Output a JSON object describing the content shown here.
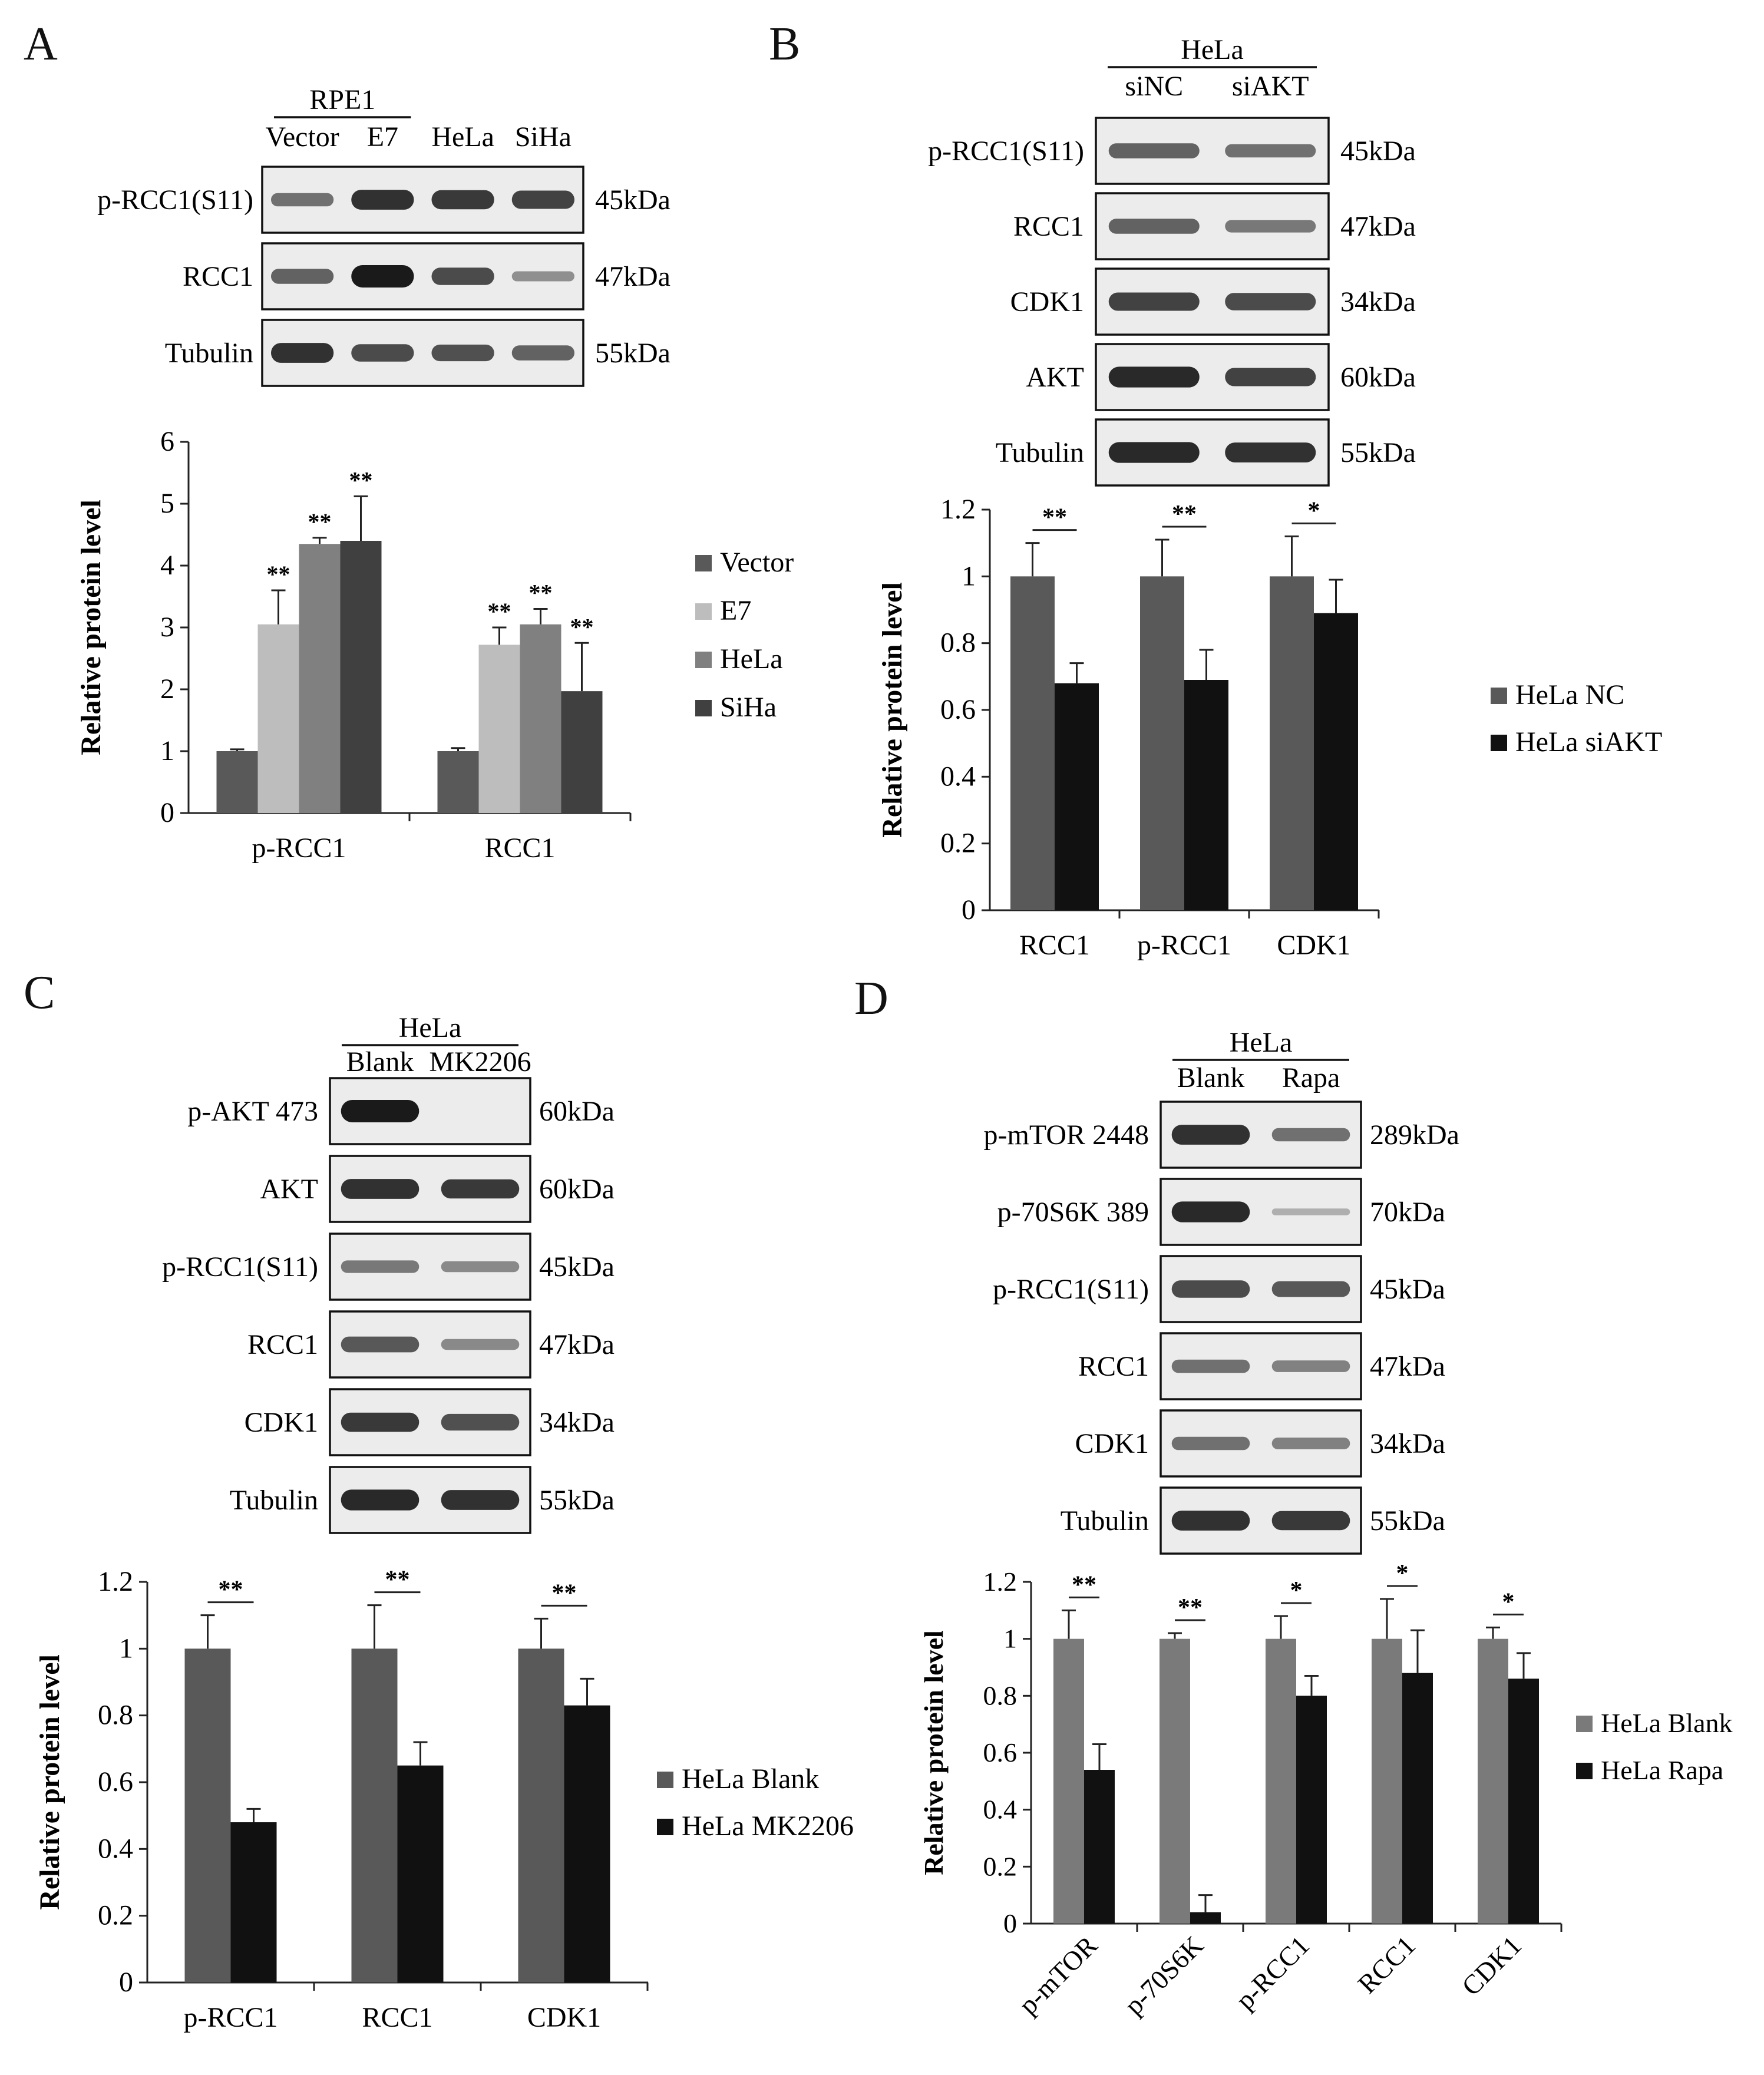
{
  "panels": {
    "A": {
      "letter": "A",
      "group_label": "RPE1",
      "lanes": [
        "Vector",
        "E7",
        "HeLa",
        "SiHa"
      ],
      "blots": [
        {
          "label": "p-RCC1(S11)",
          "size": "45kDa",
          "intensity": [
            0.45,
            0.85,
            0.8,
            0.75
          ]
        },
        {
          "label": "RCC1",
          "size": "47kDa",
          "intensity": [
            0.55,
            1.0,
            0.7,
            0.25
          ]
        },
        {
          "label": "Tubulin",
          "size": "55kDa",
          "intensity": [
            0.85,
            0.7,
            0.65,
            0.55
          ]
        }
      ]
    },
    "B": {
      "letter": "B",
      "group_label": "HeLa",
      "lanes": [
        "siNC",
        "siAKT"
      ],
      "blots": [
        {
          "label": "p-RCC1(S11)",
          "size": "45kDa",
          "intensity": [
            0.55,
            0.45
          ]
        },
        {
          "label": "RCC1",
          "size": "47kDa",
          "intensity": [
            0.55,
            0.4
          ]
        },
        {
          "label": "CDK1",
          "size": "34kDa",
          "intensity": [
            0.75,
            0.7
          ]
        },
        {
          "label": "AKT",
          "size": "60kDa",
          "intensity": [
            0.9,
            0.75
          ]
        },
        {
          "label": "Tubulin",
          "size": "55kDa",
          "intensity": [
            0.9,
            0.85
          ]
        }
      ]
    },
    "C": {
      "letter": "C",
      "group_label": "HeLa",
      "lanes": [
        "Blank",
        "MK2206"
      ],
      "blots": [
        {
          "label": "p-AKT 473",
          "size": "60kDa",
          "intensity": [
            1.0,
            0.0
          ]
        },
        {
          "label": "AKT",
          "size": "60kDa",
          "intensity": [
            0.85,
            0.8
          ]
        },
        {
          "label": "p-RCC1(S11)",
          "size": "45kDa",
          "intensity": [
            0.4,
            0.3
          ]
        },
        {
          "label": "RCC1",
          "size": "47kDa",
          "intensity": [
            0.6,
            0.3
          ]
        },
        {
          "label": "CDK1",
          "size": "34kDa",
          "intensity": [
            0.8,
            0.65
          ]
        },
        {
          "label": "Tubulin",
          "size": "55kDa",
          "intensity": [
            0.9,
            0.85
          ]
        }
      ]
    },
    "D": {
      "letter": "D",
      "group_label": "HeLa",
      "lanes": [
        "Blank",
        "Rapa"
      ],
      "blots": [
        {
          "label": "p-mTOR 2448",
          "size": "289kDa",
          "intensity": [
            0.85,
            0.45
          ]
        },
        {
          "label": "p-70S6K 389",
          "size": "70kDa",
          "intensity": [
            0.9,
            0.05
          ]
        },
        {
          "label": "p-RCC1(S11)",
          "size": "45kDa",
          "intensity": [
            0.7,
            0.6
          ]
        },
        {
          "label": "RCC1",
          "size": "47kDa",
          "intensity": [
            0.45,
            0.35
          ]
        },
        {
          "label": "CDK1",
          "size": "34kDa",
          "intensity": [
            0.45,
            0.35
          ]
        },
        {
          "label": "Tubulin",
          "size": "55kDa",
          "intensity": [
            0.85,
            0.8
          ]
        }
      ]
    }
  },
  "chart_data": [
    {
      "panel": "A",
      "type": "bar",
      "categories": [
        "p-RCC1",
        "RCC1"
      ],
      "ylabel": "Relative protein level",
      "ylim": [
        0,
        6
      ],
      "yticks": [
        0,
        1,
        2,
        3,
        4,
        5,
        6
      ],
      "ytick_labels": [
        "0",
        "1",
        "2",
        "3",
        "4",
        "5",
        "6"
      ],
      "series": [
        {
          "name": "Vector",
          "color": "#595959",
          "values": [
            1.0,
            1.0
          ],
          "errors": [
            0.03,
            0.05
          ],
          "sig": [
            "",
            ""
          ]
        },
        {
          "name": "E7",
          "color": "#bdbdbd",
          "values": [
            3.05,
            2.72
          ],
          "errors": [
            0.55,
            0.28
          ],
          "sig": [
            "**",
            "**"
          ]
        },
        {
          "name": "HeLa",
          "color": "#808080",
          "values": [
            4.35,
            3.05
          ],
          "errors": [
            0.1,
            0.25
          ],
          "sig": [
            "**",
            "**"
          ]
        },
        {
          "name": "SiHa",
          "color": "#404040",
          "values": [
            4.4,
            1.97
          ],
          "errors": [
            0.72,
            0.78
          ],
          "sig": [
            "**",
            "**"
          ]
        }
      ],
      "bracket_sig": []
    },
    {
      "panel": "B",
      "type": "bar",
      "categories": [
        "RCC1",
        "p-RCC1",
        "CDK1"
      ],
      "ylabel": "Relative protein level",
      "ylim": [
        0,
        1.2
      ],
      "yticks": [
        0,
        0.2,
        0.4,
        0.6,
        0.8,
        1,
        1.2
      ],
      "ytick_labels": [
        "0",
        "0.2",
        "0.4",
        "0.6",
        "0.8",
        "1",
        "1.2"
      ],
      "series": [
        {
          "name": "HeLa NC",
          "color": "#595959",
          "values": [
            1.0,
            1.0,
            1.0
          ],
          "errors": [
            0.1,
            0.11,
            0.12
          ]
        },
        {
          "name": "HeLa siAKT",
          "color": "#111111",
          "values": [
            0.68,
            0.69,
            0.89
          ],
          "errors": [
            0.06,
            0.09,
            0.1
          ]
        }
      ],
      "bracket_sig": [
        "**",
        "**",
        "*"
      ]
    },
    {
      "panel": "C",
      "type": "bar",
      "categories": [
        "p-RCC1",
        "RCC1",
        "CDK1"
      ],
      "ylabel": "Relative protein level",
      "ylim": [
        0,
        1.2
      ],
      "yticks": [
        0,
        0.2,
        0.4,
        0.6,
        0.8,
        1,
        1.2
      ],
      "ytick_labels": [
        "0",
        "0.2",
        "0.4",
        "0.6",
        "0.8",
        "1",
        "1.2"
      ],
      "series": [
        {
          "name": "HeLa Blank",
          "color": "#595959",
          "values": [
            1.0,
            1.0,
            1.0
          ],
          "errors": [
            0.1,
            0.13,
            0.09
          ]
        },
        {
          "name": "HeLa MK2206",
          "color": "#111111",
          "values": [
            0.48,
            0.65,
            0.83
          ],
          "errors": [
            0.04,
            0.07,
            0.08
          ]
        }
      ],
      "bracket_sig": [
        "**",
        "**",
        "**"
      ]
    },
    {
      "panel": "D",
      "type": "bar",
      "categories": [
        "p-mTOR",
        "p-70S6K",
        "p-RCC1",
        "RCC1",
        "CDK1"
      ],
      "ylabel": "Relative protein level",
      "ylim": [
        0,
        1.2
      ],
      "yticks": [
        0,
        0.2,
        0.4,
        0.6,
        0.8,
        1,
        1.2
      ],
      "ytick_labels": [
        "0",
        "0.2",
        "0.4",
        "0.6",
        "0.8",
        "1",
        "1.2"
      ],
      "series": [
        {
          "name": "HeLa Blank",
          "color": "#7a7a7a",
          "values": [
            1.0,
            1.0,
            1.0,
            1.0,
            1.0
          ],
          "errors": [
            0.1,
            0.02,
            0.08,
            0.14,
            0.04
          ]
        },
        {
          "name": "HeLa Rapa",
          "color": "#111111",
          "values": [
            0.54,
            0.04,
            0.8,
            0.88,
            0.86
          ],
          "errors": [
            0.09,
            0.06,
            0.07,
            0.15,
            0.09
          ]
        }
      ],
      "bracket_sig": [
        "**",
        "**",
        "*",
        "*",
        "*"
      ]
    }
  ]
}
